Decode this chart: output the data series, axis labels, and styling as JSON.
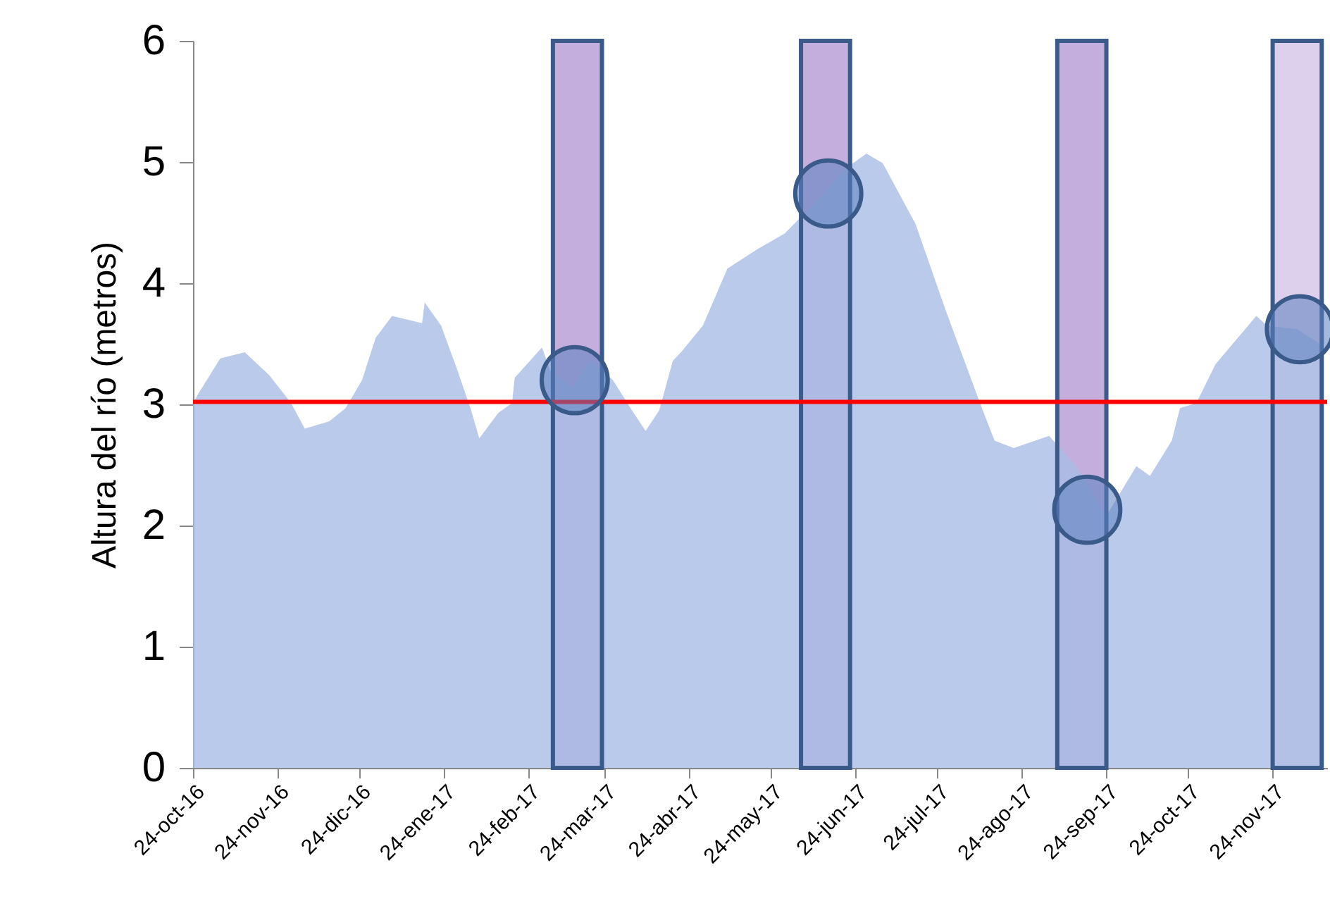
{
  "chart_data": {
    "type": "area",
    "ylabel": "Altura del río  (metros)",
    "ylim": [
      0,
      6
    ],
    "yticks": [
      0,
      1,
      2,
      3,
      4,
      5,
      6
    ],
    "xlim": [
      "2016-10-24",
      "2017-12-14"
    ],
    "xticks": [
      {
        "value": "2016-10-24",
        "label": "24-oct-16"
      },
      {
        "value": "2016-11-24",
        "label": "24-nov-16"
      },
      {
        "value": "2016-12-24",
        "label": "24-dic-16"
      },
      {
        "value": "2017-01-24",
        "label": "24-ene-17"
      },
      {
        "value": "2017-02-24",
        "label": "24-feb-17"
      },
      {
        "value": "2017-03-24",
        "label": "24-mar-17"
      },
      {
        "value": "2017-04-24",
        "label": "24-abr-17"
      },
      {
        "value": "2017-05-24",
        "label": "24-may-17"
      },
      {
        "value": "2017-06-24",
        "label": "24-jun-17"
      },
      {
        "value": "2017-07-24",
        "label": "24-jul-17"
      },
      {
        "value": "2017-08-24",
        "label": "24-ago-17"
      },
      {
        "value": "2017-09-24",
        "label": "24-sep-17"
      },
      {
        "value": "2017-10-24",
        "label": "24-oct-17"
      },
      {
        "value": "2017-11-24",
        "label": "24-nov-17"
      }
    ],
    "grid": false,
    "series": [
      {
        "color": "#a9bde6",
        "x": [
          "2016-10-24",
          "2016-10-26",
          "2016-11-03",
          "2016-11-12",
          "2016-11-21",
          "2016-11-29",
          "2016-12-04",
          "2016-12-13",
          "2016-12-19",
          "2016-12-25",
          "2016-12-30",
          "2017-01-05",
          "2017-01-16",
          "2017-01-17",
          "2017-01-23",
          "2017-01-29",
          "2017-02-03",
          "2017-02-06",
          "2017-02-13",
          "2017-02-18",
          "2017-02-19",
          "2017-03-01",
          "2017-03-04",
          "2017-03-12",
          "2017-03-19",
          "2017-03-27",
          "2017-04-03",
          "2017-04-08",
          "2017-04-13",
          "2017-04-18",
          "2017-04-21",
          "2017-04-29",
          "2017-05-08",
          "2017-05-10",
          "2017-05-19",
          "2017-05-29",
          "2017-06-12",
          "2017-06-20",
          "2017-06-28",
          "2017-07-04",
          "2017-07-16",
          "2017-07-27",
          "2017-08-09",
          "2017-08-14",
          "2017-08-21",
          "2017-09-03",
          "2017-09-13",
          "2017-09-24",
          "2017-10-05",
          "2017-10-10",
          "2017-10-18",
          "2017-10-21",
          "2017-10-27",
          "2017-11-03",
          "2017-11-18",
          "2017-11-22",
          "2017-12-03",
          "2017-12-12"
        ],
        "values": [
          3.01,
          3.09,
          3.38,
          3.43,
          3.24,
          3.01,
          2.8,
          2.86,
          2.97,
          3.2,
          3.55,
          3.73,
          3.67,
          3.84,
          3.65,
          3.28,
          2.95,
          2.72,
          2.93,
          3.01,
          3.22,
          3.47,
          3.28,
          3.14,
          3.36,
          3.2,
          2.95,
          2.78,
          2.95,
          3.36,
          3.43,
          3.65,
          4.12,
          4.15,
          4.28,
          4.41,
          4.73,
          4.94,
          5.07,
          4.99,
          4.49,
          3.78,
          2.99,
          2.7,
          2.64,
          2.74,
          2.49,
          2.08,
          2.49,
          2.41,
          2.7,
          2.97,
          3.01,
          3.33,
          3.73,
          3.65,
          3.62,
          3.49
        ]
      },
      {
        "type": "scatter",
        "color": "#5b7fc0",
        "marker": "circle",
        "x": [
          "2017-03-13",
          "2017-06-14",
          "2017-09-17",
          "2017-12-04"
        ],
        "values": [
          3.2,
          4.74,
          2.13,
          3.62
        ]
      }
    ],
    "ref_lines": [
      {
        "axis": "y",
        "value": 3.02,
        "color": "#ff0000",
        "line_style": "solid"
      }
    ],
    "bands": [
      {
        "axis": "x",
        "from": "2017-03-05",
        "to": "2017-03-23",
        "color": "#c3aedd"
      },
      {
        "axis": "x",
        "from": "2017-06-04",
        "to": "2017-06-22",
        "color": "#c3aedd"
      },
      {
        "axis": "x",
        "from": "2017-09-06",
        "to": "2017-09-24",
        "color": "#c3aedd"
      },
      {
        "axis": "x",
        "from": "2017-11-24",
        "to": "2017-12-12",
        "color": "#ddd0ec"
      }
    ]
  }
}
